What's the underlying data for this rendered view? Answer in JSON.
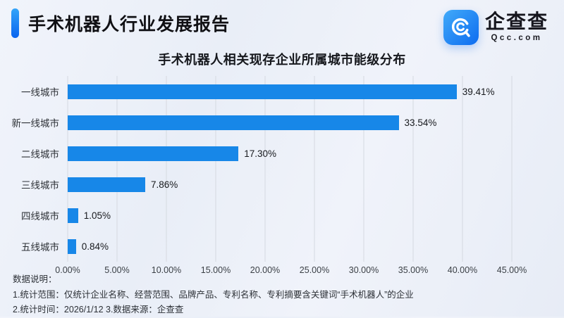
{
  "header": {
    "title": "手术机器人行业发展报告",
    "logo": {
      "name": "企查查",
      "domain": "Qcc.com"
    }
  },
  "chart_data": {
    "type": "bar",
    "orientation": "horizontal",
    "title": "手术机器人相关现存企业所属城市能级分布",
    "categories": [
      "一线城市",
      "新一线城市",
      "二线城市",
      "三线城市",
      "四线城市",
      "五线城市"
    ],
    "values": [
      39.41,
      33.54,
      17.3,
      7.86,
      1.05,
      0.84
    ],
    "value_labels": [
      "39.41%",
      "33.54%",
      "17.30%",
      "7.86%",
      "1.05%",
      "0.84%"
    ],
    "xlabel": "",
    "ylabel": "",
    "xlim": [
      0,
      45
    ],
    "x_ticks": [
      "0.00%",
      "5.00%",
      "10.00%",
      "15.00%",
      "20.00%",
      "25.00%",
      "30.00%",
      "35.00%",
      "40.00%",
      "45.00%"
    ],
    "grid": true,
    "legend": false,
    "bar_color": "#1787E8"
  },
  "notes": {
    "heading": "数据说明：",
    "line1": "1.统计范围：仅统计企业名称、经营范围、品牌产品、专利名称、专利摘要含关键词“手术机器人”的企业",
    "line2": "2.统计时间：2026/1/12 3.数据来源：企查查"
  },
  "colors": {
    "accent_top": "#34A5F9",
    "accent_bottom": "#0A64EF",
    "bar": "#1787E8",
    "background": "#EDF1F9",
    "grid": "#D5D9E1"
  }
}
